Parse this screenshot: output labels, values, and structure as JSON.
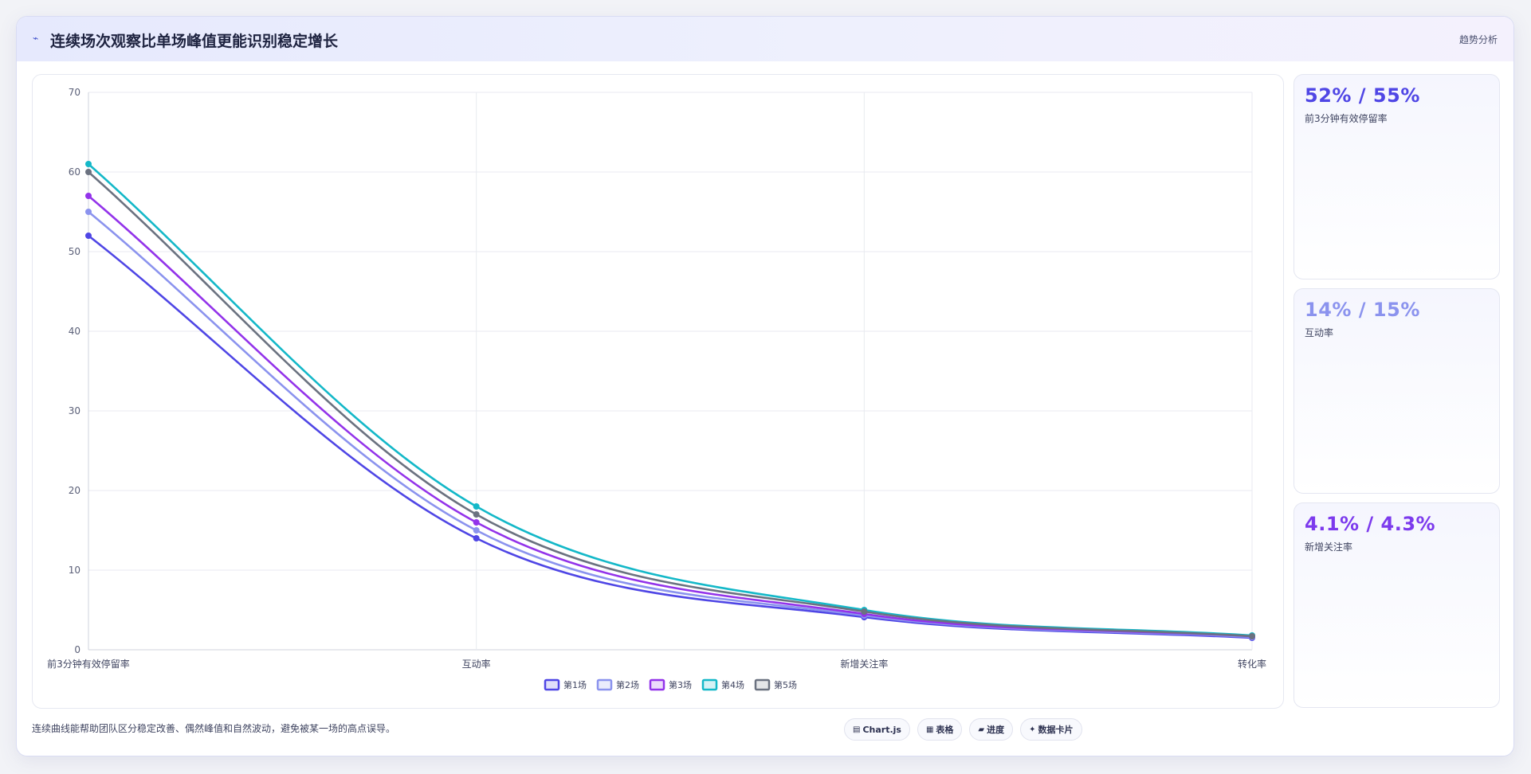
{
  "header": {
    "icon": "trend-icon",
    "title": "连续场次观察比单场峰值更能识别稳定增长",
    "tag": "趋势分析"
  },
  "chart_data": {
    "type": "line",
    "categories": [
      "前3分钟有效停留率",
      "互动率",
      "新增关注率",
      "转化率"
    ],
    "series": [
      {
        "name": "第1场",
        "color": "#4f46e5",
        "values": [
          52,
          14,
          4.1,
          1.5
        ]
      },
      {
        "name": "第2场",
        "color": "#8b93ee",
        "values": [
          55,
          15,
          4.3,
          1.6
        ]
      },
      {
        "name": "第3场",
        "color": "#9333ea",
        "values": [
          57,
          16,
          4.5,
          1.7
        ]
      },
      {
        "name": "第4场",
        "color": "#14b8c8",
        "values": [
          61,
          18,
          5.0,
          1.8
        ]
      },
      {
        "name": "第5场",
        "color": "#6b7280",
        "values": [
          60,
          17,
          4.8,
          1.7
        ]
      }
    ],
    "yticks": [
      "0",
      "10",
      "20",
      "30",
      "40",
      "50",
      "60",
      "70"
    ],
    "ylim": [
      0,
      70
    ],
    "grid": true,
    "legend": "bottom",
    "smooth": true
  },
  "side_cards": [
    {
      "value": "52% / 55%",
      "label": "前3分钟有效停留率",
      "color": "#4f46e5"
    },
    {
      "value": "14% / 15%",
      "label": "互动率",
      "color": "#8b93ee"
    },
    {
      "value": "4.1% / 4.3%",
      "label": "新增关注率",
      "color": "#7c3aed"
    }
  ],
  "footer": {
    "note": "连续曲线能帮助团队区分稳定改善、偶然峰值和自然波动，避免被某一场的高点误导。",
    "chips": [
      {
        "icon": "chart-icon",
        "glyph": "▤",
        "label": "Chart.js"
      },
      {
        "icon": "table-icon",
        "glyph": "▦",
        "label": "表格"
      },
      {
        "icon": "progress-icon",
        "glyph": "▰",
        "label": "进度"
      },
      {
        "icon": "sparkle-icon",
        "glyph": "✦",
        "label": "数据卡片"
      }
    ]
  }
}
